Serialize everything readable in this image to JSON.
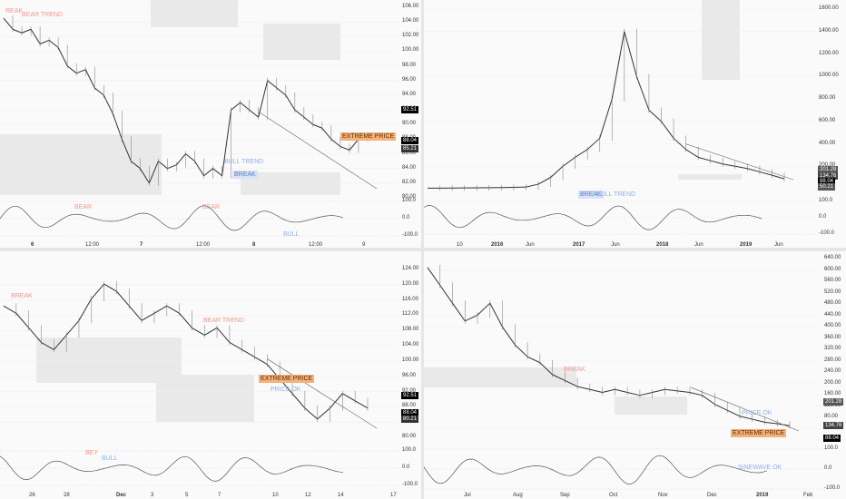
{
  "panels": [
    {
      "id": "p1",
      "y_ticks": [
        "106.00",
        "104.00",
        "102.00",
        "100.00",
        "98.00",
        "96.00",
        "94.00",
        "92.00",
        "90.00",
        "88.00",
        "86.00",
        "84.00",
        "82.00",
        "80.00"
      ],
      "osc_ticks": [
        "100.0",
        "0.0",
        "-100.0"
      ],
      "x_ticks": [
        {
          "label": "6",
          "bold": true
        },
        {
          "label": "12:00",
          "bold": false
        },
        {
          "label": "7",
          "bold": true
        },
        {
          "label": "12:00",
          "bold": false
        },
        {
          "label": "8",
          "bold": true
        },
        {
          "label": "12:00",
          "bold": false
        },
        {
          "label": "9",
          "bold": false
        }
      ],
      "badges": [
        {
          "text": "92.51",
          "color": "#000000"
        },
        {
          "text": "88.04",
          "color": "#000000"
        },
        {
          "text": "85.21",
          "color": "#333333"
        }
      ],
      "annotations": [
        {
          "text": "REAK",
          "style": "red"
        },
        {
          "text": "BEAR TREND",
          "style": "red"
        },
        {
          "text": "EXTREME PRICE",
          "style": "orange"
        },
        {
          "text": "BULL TREND",
          "style": "blue"
        },
        {
          "text": "BREAK",
          "style": "blue-bg"
        },
        {
          "text": "BEAR",
          "style": "red"
        },
        {
          "text": "BEAR",
          "style": "red"
        },
        {
          "text": "BULL",
          "style": "blue"
        }
      ]
    },
    {
      "id": "p2",
      "y_ticks": [
        "1600.00",
        "1400.00",
        "1200.00",
        "1000.00",
        "800.00",
        "600.00",
        "400.00",
        "200.00",
        "0.00"
      ],
      "osc_ticks": [
        "100.0",
        "0.0",
        "-100.0"
      ],
      "x_ticks": [
        {
          "label": "10",
          "bold": false
        },
        {
          "label": "2016",
          "bold": true
        },
        {
          "label": "Jun",
          "bold": false
        },
        {
          "label": "2017",
          "bold": true
        },
        {
          "label": "Jun",
          "bold": false
        },
        {
          "label": "2018",
          "bold": true
        },
        {
          "label": "Jun",
          "bold": false
        },
        {
          "label": "2019",
          "bold": true
        },
        {
          "label": "Jun",
          "bold": false
        }
      ],
      "badges": [
        {
          "text": "201.28",
          "color": "#555555"
        },
        {
          "text": "134.76",
          "color": "#444444"
        },
        {
          "text": "88.04",
          "color": "#000000"
        },
        {
          "text": "50.21",
          "color": "#555555"
        }
      ],
      "annotations": [
        {
          "text": "BREAK",
          "style": "blue-bg"
        },
        {
          "text": "BULL TREND",
          "style": "blue"
        }
      ]
    },
    {
      "id": "p3",
      "y_ticks": [
        "124.00",
        "120.00",
        "116.00",
        "112.00",
        "108.00",
        "104.00",
        "100.00",
        "96.00",
        "92.00",
        "88.00",
        "84.00",
        "80.00"
      ],
      "osc_ticks": [
        "100.0",
        "0.0",
        "-100.0"
      ],
      "x_ticks": [
        {
          "label": "26",
          "bold": false
        },
        {
          "label": "28",
          "bold": false
        },
        {
          "label": "Dec",
          "bold": true
        },
        {
          "label": "3",
          "bold": false
        },
        {
          "label": "5",
          "bold": false
        },
        {
          "label": "7",
          "bold": false
        },
        {
          "label": "10",
          "bold": false
        },
        {
          "label": "12",
          "bold": false
        },
        {
          "label": "14",
          "bold": false
        },
        {
          "label": "17",
          "bold": false
        }
      ],
      "badges": [
        {
          "text": "92.51",
          "color": "#000000"
        },
        {
          "text": "88.04",
          "color": "#000000"
        },
        {
          "text": "80.21",
          "color": "#333333"
        }
      ],
      "annotations": [
        {
          "text": "BREAK",
          "style": "red"
        },
        {
          "text": "BEAR TREND",
          "style": "red"
        },
        {
          "text": "EXTREME PRICE",
          "style": "orange"
        },
        {
          "text": "PRICE OK",
          "style": "blue"
        },
        {
          "text": "BEY",
          "style": "red"
        },
        {
          "text": "BULL",
          "style": "blue"
        }
      ]
    },
    {
      "id": "p4",
      "y_ticks": [
        "640.00",
        "600.00",
        "560.00",
        "520.00",
        "480.00",
        "440.00",
        "400.00",
        "360.00",
        "320.00",
        "280.00",
        "240.00",
        "200.00",
        "160.00",
        "120.00",
        "80.00",
        "60.00",
        "40.00"
      ],
      "osc_ticks": [
        "100.0",
        "0.0",
        "-100.0"
      ],
      "x_ticks": [
        {
          "label": "Jul",
          "bold": false
        },
        {
          "label": "Aug",
          "bold": false
        },
        {
          "label": "Sep",
          "bold": false
        },
        {
          "label": "Oct",
          "bold": false
        },
        {
          "label": "Nov",
          "bold": false
        },
        {
          "label": "Dec",
          "bold": false
        },
        {
          "label": "2019",
          "bold": true
        },
        {
          "label": "Feb",
          "bold": false
        }
      ],
      "badges": [
        {
          "text": "201.28",
          "color": "#555555"
        },
        {
          "text": "134.76",
          "color": "#444444"
        },
        {
          "text": "88.04",
          "color": "#000000"
        }
      ],
      "annotations": [
        {
          "text": "BREAK",
          "style": "red"
        },
        {
          "text": "PRICE OK",
          "style": "blue"
        },
        {
          "text": "EXTREME PRICE",
          "style": "orange"
        },
        {
          "text": "SINEWAVE OK",
          "style": "blue"
        }
      ]
    }
  ],
  "chart_data": [
    {
      "type": "line",
      "panel": "p1",
      "ylim": [
        80,
        106
      ],
      "x": [
        0,
        1,
        2,
        3,
        4,
        5,
        6,
        7,
        8,
        9,
        10,
        11,
        12,
        13,
        14,
        15,
        16,
        17,
        18,
        19,
        20,
        21,
        22,
        23,
        24,
        25,
        26,
        27,
        28,
        29,
        30,
        31,
        32,
        33,
        34,
        35,
        36,
        37,
        38,
        39,
        40
      ],
      "series": [
        {
          "values": [
            104.5,
            103,
            102.5,
            103,
            101,
            101.5,
            100.5,
            98,
            97,
            97.5,
            95,
            94,
            91.5,
            88,
            85,
            84,
            82,
            85,
            84,
            84.5,
            86,
            85,
            83,
            84,
            83,
            92,
            93,
            92,
            91,
            96,
            95,
            94,
            92,
            91,
            90,
            89.5,
            88,
            87,
            86.5,
            88,
            88.04
          ]
        }
      ]
    },
    {
      "type": "line",
      "panel": "p2",
      "ylim": [
        0,
        1600
      ],
      "x": [
        0,
        1,
        2,
        3,
        4,
        5,
        6,
        7,
        8,
        9,
        10,
        11,
        12,
        13,
        14,
        15,
        16,
        17,
        18,
        19,
        20,
        21,
        22,
        23,
        24,
        25,
        26,
        27,
        28,
        29
      ],
      "series": [
        {
          "values": [
            5,
            5,
            6,
            7,
            8,
            9,
            10,
            12,
            15,
            40,
            100,
            200,
            280,
            350,
            450,
            800,
            1400,
            1000,
            700,
            600,
            450,
            350,
            280,
            250,
            220,
            200,
            180,
            150,
            120,
            88
          ]
        }
      ]
    },
    {
      "type": "line",
      "panel": "p3",
      "ylim": [
        80,
        126
      ],
      "x": [
        0,
        1,
        2,
        3,
        4,
        5,
        6,
        7,
        8,
        9,
        10,
        11,
        12,
        13,
        14,
        15,
        16,
        17,
        18,
        19,
        20,
        21,
        22,
        23,
        24,
        25,
        26,
        27,
        28,
        29
      ],
      "series": [
        {
          "values": [
            116,
            114,
            110,
            106,
            104,
            108,
            112,
            118,
            122,
            120,
            116,
            112,
            114,
            116,
            114,
            110,
            108,
            110,
            106,
            104,
            102,
            100,
            96,
            92,
            88,
            85,
            88,
            92,
            90,
            88
          ]
        }
      ]
    },
    {
      "type": "line",
      "panel": "p4",
      "ylim": [
        40,
        650
      ],
      "x": [
        0,
        1,
        2,
        3,
        4,
        5,
        6,
        7,
        8,
        9,
        10,
        11,
        12,
        13,
        14,
        15,
        16,
        17,
        18,
        19,
        20,
        21,
        22,
        23,
        24,
        25,
        26,
        27,
        28,
        29
      ],
      "series": [
        {
          "values": [
            620,
            560,
            500,
            440,
            460,
            500,
            420,
            360,
            320,
            300,
            260,
            240,
            220,
            210,
            200,
            210,
            200,
            190,
            200,
            210,
            205,
            200,
            190,
            160,
            140,
            120,
            110,
            100,
            95,
            88
          ]
        }
      ]
    }
  ]
}
